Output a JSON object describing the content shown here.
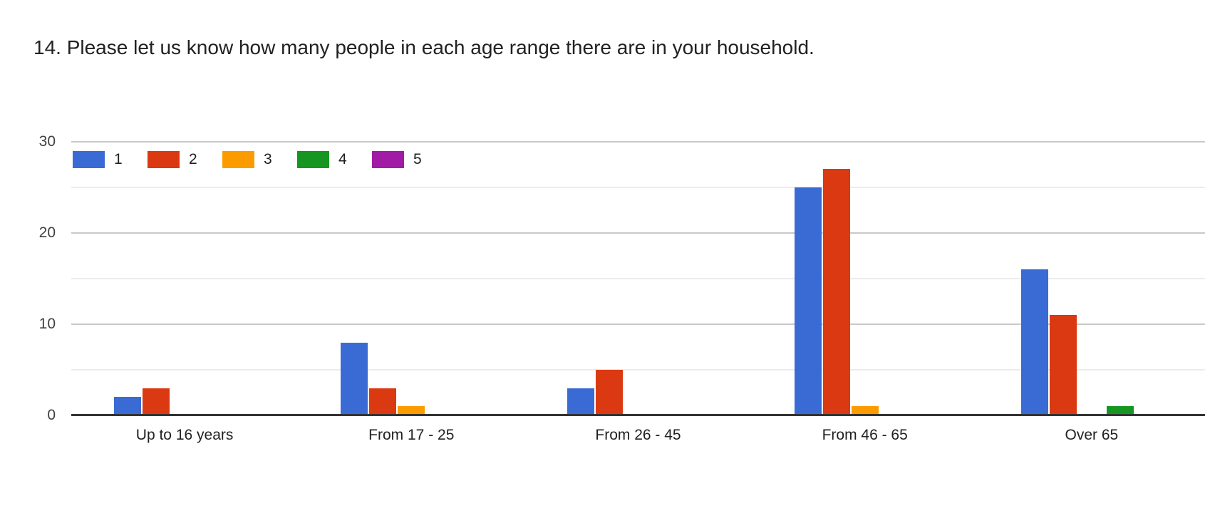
{
  "chart_data": {
    "type": "bar",
    "title": "14. Please let us know how many people in each age range there are in your household.",
    "categories": [
      "Up to 16 years",
      "From 17 - 25",
      "From 26 - 45",
      "From 46 - 65",
      "Over 65"
    ],
    "series": [
      {
        "name": "1",
        "color": "#3a6bd5",
        "values": [
          2,
          8,
          3,
          25,
          16
        ]
      },
      {
        "name": "2",
        "color": "#db3912",
        "values": [
          3,
          3,
          5,
          27,
          11
        ]
      },
      {
        "name": "3",
        "color": "#fb9b00",
        "values": [
          0,
          1,
          0,
          1,
          0
        ]
      },
      {
        "name": "4",
        "color": "#149621",
        "values": [
          0,
          0,
          0,
          0,
          1
        ]
      },
      {
        "name": "5",
        "color": "#a21ba5",
        "values": [
          0,
          0,
          0,
          0,
          0
        ]
      }
    ],
    "xlabel": "",
    "ylabel": "",
    "ylim": [
      0,
      30
    ],
    "yticks": [
      0,
      10,
      20,
      30
    ],
    "minor_gridlines": [
      5,
      15,
      25
    ],
    "grid": "on",
    "legend_position": "top-left",
    "axis_colors": {
      "major_gridline": "#c9c9c9",
      "minor_gridline": "#ececec",
      "baseline": "#333333"
    }
  }
}
